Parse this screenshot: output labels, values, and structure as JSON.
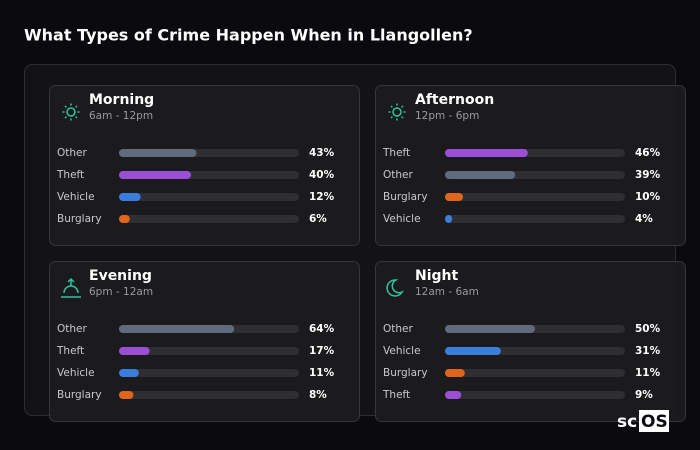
{
  "title": "What Types of Crime Happen When in Llangollen?",
  "xlim": [
    0,
    100
  ],
  "panels": [
    {
      "name": "Morning",
      "time": "6am - 12pm",
      "rows": [
        {
          "label": "Other",
          "value": 43,
          "value_label": "43%",
          "color": "#5f6b7d"
        },
        {
          "label": "Theft",
          "value": 40,
          "value_label": "40%",
          "color": "#9b4fd6"
        },
        {
          "label": "Vehicle",
          "value": 12,
          "value_label": "12%",
          "color": "#3b7ddd"
        },
        {
          "label": "Burglary",
          "value": 6,
          "value_label": "6%",
          "color": "#e0661e"
        }
      ]
    },
    {
      "name": "Afternoon",
      "time": "12pm - 6pm",
      "rows": [
        {
          "label": "Theft",
          "value": 46,
          "value_label": "46%",
          "color": "#9b4fd6"
        },
        {
          "label": "Other",
          "value": 39,
          "value_label": "39%",
          "color": "#5f6b7d"
        },
        {
          "label": "Burglary",
          "value": 10,
          "value_label": "10%",
          "color": "#e0661e"
        },
        {
          "label": "Vehicle",
          "value": 4,
          "value_label": "4%",
          "color": "#3b7ddd"
        }
      ]
    },
    {
      "name": "Evening",
      "time": "6pm - 12am",
      "rows": [
        {
          "label": "Other",
          "value": 64,
          "value_label": "64%",
          "color": "#5f6b7d"
        },
        {
          "label": "Theft",
          "value": 17,
          "value_label": "17%",
          "color": "#9b4fd6"
        },
        {
          "label": "Vehicle",
          "value": 11,
          "value_label": "11%",
          "color": "#3b7ddd"
        },
        {
          "label": "Burglary",
          "value": 8,
          "value_label": "8%",
          "color": "#e0661e"
        }
      ]
    },
    {
      "name": "Night",
      "time": "12am - 6am",
      "rows": [
        {
          "label": "Other",
          "value": 50,
          "value_label": "50%",
          "color": "#5f6b7d"
        },
        {
          "label": "Vehicle",
          "value": 31,
          "value_label": "31%",
          "color": "#3b7ddd"
        },
        {
          "label": "Burglary",
          "value": 11,
          "value_label": "11%",
          "color": "#e0661e"
        },
        {
          "label": "Theft",
          "value": 9,
          "value_label": "9%",
          "color": "#9b4fd6"
        }
      ]
    }
  ],
  "logo": [
    "sc",
    "OS"
  ]
}
